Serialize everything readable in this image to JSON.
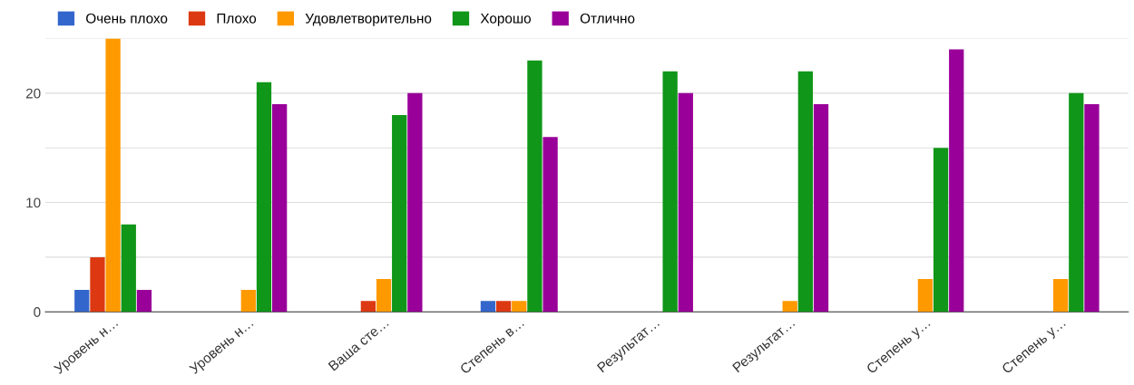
{
  "chart_data": {
    "type": "bar",
    "categories": [
      "Уровень н…",
      "Уровень н…",
      "Ваша сте…",
      "Степень в…",
      "Результат…",
      "Результат…",
      "Степень у…",
      "Степень у…"
    ],
    "series": [
      {
        "name": "Очень плохо",
        "color": "#3366cc",
        "values": [
          2,
          0,
          0,
          1,
          0,
          0,
          0,
          0
        ]
      },
      {
        "name": "Плохо",
        "color": "#dc3912",
        "values": [
          5,
          0,
          1,
          1,
          0,
          0,
          0,
          0
        ]
      },
      {
        "name": "Удовлетворительно",
        "color": "#ff9900",
        "values": [
          25,
          2,
          3,
          1,
          0,
          1,
          3,
          3
        ]
      },
      {
        "name": "Хорошо",
        "color": "#109618",
        "values": [
          8,
          21,
          18,
          23,
          22,
          22,
          15,
          20
        ]
      },
      {
        "name": "Отлично",
        "color": "#990099",
        "values": [
          2,
          19,
          20,
          16,
          20,
          19,
          24,
          19
        ]
      }
    ],
    "ylim": [
      0,
      25
    ],
    "yticks": [
      0,
      {
        "value": 5,
        "label": null
      },
      10,
      {
        "value": 15,
        "label": null
      },
      20,
      {
        "value": 25,
        "label": null
      }
    ],
    "grid": "y",
    "legend": "top left"
  }
}
